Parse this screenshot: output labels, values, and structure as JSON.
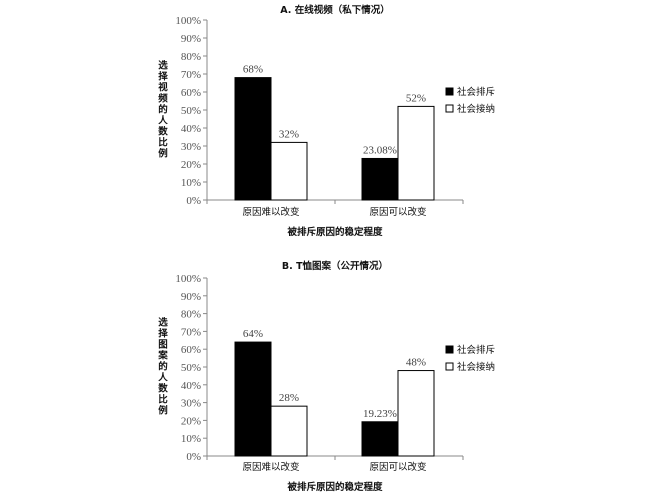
{
  "chart_data": [
    {
      "type": "bar",
      "title": "A. 在线视频（私下情况）",
      "xlabel": "被排斥原因的稳定程度",
      "ylabel": "选择视频的人数比例",
      "categories": [
        "原因难以改变",
        "原因可以改变"
      ],
      "series": [
        {
          "name": "社会排斥",
          "values": [
            68,
            23.08
          ],
          "labels": [
            "68%",
            "23.08%"
          ],
          "color": "#000000"
        },
        {
          "name": "社会接纳",
          "values": [
            32,
            52
          ],
          "labels": [
            "32%",
            "52%"
          ],
          "color": "#ffffff"
        }
      ],
      "ylim": [
        0,
        100
      ],
      "yticks": [
        "0%",
        "10%",
        "20%",
        "30%",
        "40%",
        "50%",
        "60%",
        "70%",
        "80%",
        "90%",
        "100%"
      ],
      "grid": false,
      "legend": "right"
    },
    {
      "type": "bar",
      "title": "B. T恤图案（公开情况）",
      "xlabel": "被排斥原因的稳定程度",
      "ylabel": "选择图案的人数比例",
      "categories": [
        "原因难以改变",
        "原因可以改变"
      ],
      "series": [
        {
          "name": "社会排斥",
          "values": [
            64,
            19.23
          ],
          "labels": [
            "64%",
            "19.23%"
          ],
          "color": "#000000"
        },
        {
          "name": "社会接纳",
          "values": [
            28,
            48
          ],
          "labels": [
            "28%",
            "48%"
          ],
          "color": "#ffffff"
        }
      ],
      "ylim": [
        0,
        100
      ],
      "yticks": [
        "0%",
        "10%",
        "20%",
        "30%",
        "40%",
        "50%",
        "60%",
        "70%",
        "80%",
        "90%",
        "100%"
      ],
      "grid": false,
      "legend": "right"
    }
  ]
}
